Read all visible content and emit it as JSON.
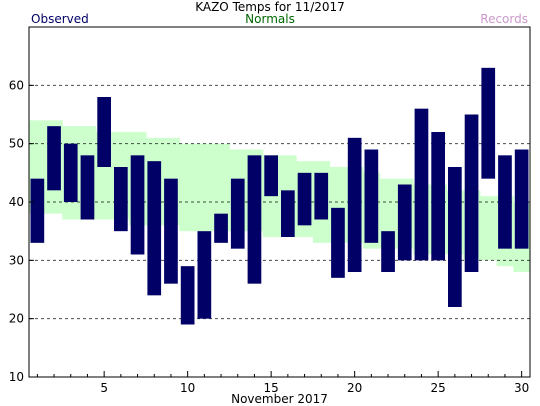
{
  "title": "KAZO Temps for 11/2017",
  "legend": {
    "observed": "Observed",
    "normals": "Normals",
    "records": "Records"
  },
  "colors": {
    "observed": "#000066",
    "observed_label": "#000066",
    "normals_fill": "#ccffcc",
    "normals_label": "#006600",
    "records_label": "#cc99cc",
    "grid": "#000000",
    "frame": "#000000"
  },
  "chart_data": {
    "type": "bar",
    "title": "KAZO Temps for 11/2017",
    "xlabel": "November 2017",
    "ylabel": "",
    "ylim": [
      10,
      70
    ],
    "xlim": [
      0.5,
      30.5
    ],
    "yticks": [
      10,
      20,
      30,
      40,
      50,
      60
    ],
    "xticks": [
      5,
      10,
      15,
      20,
      25,
      30
    ],
    "grid": "horizontal dashed at y ticks",
    "days": [
      1,
      2,
      3,
      4,
      5,
      6,
      7,
      8,
      9,
      10,
      11,
      12,
      13,
      14,
      15,
      16,
      17,
      18,
      19,
      20,
      21,
      22,
      23,
      24,
      25,
      26,
      27,
      28,
      29,
      30
    ],
    "series": [
      {
        "name": "Observed",
        "low": [
          33,
          42,
          40,
          37,
          46,
          35,
          31,
          24,
          26,
          19,
          20,
          33,
          32,
          26,
          41,
          34,
          36,
          37,
          27,
          28,
          33,
          28,
          30,
          30,
          30,
          22,
          28,
          44,
          32,
          32
        ],
        "high": [
          44,
          53,
          50,
          48,
          58,
          46,
          48,
          47,
          44,
          29,
          35,
          38,
          44,
          48,
          48,
          42,
          45,
          45,
          39,
          51,
          49,
          35,
          43,
          56,
          52,
          46,
          55,
          63,
          48,
          49
        ]
      },
      {
        "name": "Normals",
        "low": [
          38,
          38,
          37,
          37,
          37,
          37,
          36,
          36,
          36,
          35,
          35,
          35,
          35,
          35,
          34,
          34,
          34,
          33,
          33,
          33,
          32,
          32,
          32,
          31,
          31,
          31,
          30,
          30,
          29,
          28
        ],
        "high": [
          54,
          54,
          53,
          53,
          52,
          52,
          52,
          51,
          51,
          50,
          50,
          50,
          49,
          49,
          48,
          48,
          47,
          47,
          46,
          46,
          45,
          44,
          44,
          43,
          43,
          42,
          42,
          41,
          41,
          40
        ]
      }
    ]
  }
}
